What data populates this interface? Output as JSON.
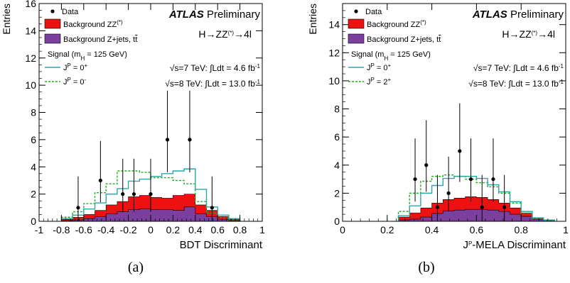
{
  "chart_data": [
    {
      "type": "histogram",
      "panel": "a",
      "caption": "(a)",
      "ylabel": "Entries",
      "xlabel": "BDT Discriminant",
      "xlim": [
        -1,
        1
      ],
      "ylim": [
        0,
        16
      ],
      "xticks": [
        -1,
        -0.8,
        -0.6,
        -0.4,
        -0.2,
        0,
        0.2,
        0.4,
        0.6,
        0.8,
        1
      ],
      "xtick_labels": [
        "-1",
        "-0.8",
        "-0.6",
        "-0.4",
        "-0.2",
        "0",
        "0.2",
        "0.4",
        "0.6",
        "0.8",
        "1"
      ],
      "yticks": [
        0,
        2,
        4,
        6,
        8,
        10,
        12,
        14,
        16
      ],
      "ytick_labels": [
        "0",
        "2",
        "4",
        "6",
        "8",
        "10",
        "12",
        "14",
        "16"
      ],
      "bin_edges": [
        -0.8,
        -0.7,
        -0.6,
        -0.5,
        -0.4,
        -0.3,
        -0.2,
        -0.1,
        0,
        0.1,
        0.2,
        0.3,
        0.4,
        0.5,
        0.6,
        0.7,
        0.8
      ],
      "background_zjets": [
        0.05,
        0.1,
        0.2,
        0.35,
        0.55,
        0.7,
        0.85,
        0.9,
        0.85,
        0.85,
        0.8,
        1.05,
        0.55,
        0.35,
        0.15,
        0.05
      ],
      "background_zz_total": [
        0.15,
        0.3,
        0.5,
        0.8,
        1.2,
        1.45,
        1.8,
        1.9,
        1.75,
        1.7,
        1.9,
        2.0,
        1.2,
        0.8,
        0.35,
        0.15
      ],
      "signal_0plus_total": [
        0.2,
        0.45,
        0.9,
        1.35,
        2.0,
        2.4,
        2.95,
        3.1,
        3.3,
        3.5,
        3.7,
        3.85,
        2.35,
        1.05,
        0.45,
        0.2
      ],
      "signal_alt_total": [
        0.3,
        0.7,
        1.3,
        2.1,
        2.75,
        3.7,
        3.7,
        3.6,
        3.2,
        3.2,
        3.0,
        2.75,
        1.45,
        0.6,
        0.25,
        0.1
      ],
      "data": [
        {
          "x": -0.65,
          "y": 1,
          "err": [
            1,
            2.3
          ]
        },
        {
          "x": -0.45,
          "y": 3,
          "err": [
            1.6,
            2.9
          ]
        },
        {
          "x": -0.25,
          "y": 2,
          "err": [
            1.3,
            2.6
          ]
        },
        {
          "x": -0.15,
          "y": 2,
          "err": [
            1.3,
            2.6
          ]
        },
        {
          "x": 0.0,
          "y": 2,
          "err": [
            1.3,
            2.6
          ]
        },
        {
          "x": 0.15,
          "y": 6,
          "err": [
            2.4,
            3.6
          ]
        },
        {
          "x": 0.35,
          "y": 6,
          "err": [
            2.4,
            3.6
          ]
        },
        {
          "x": 0.55,
          "y": 1,
          "err": [
            1,
            2.3
          ]
        }
      ],
      "legend": {
        "data": "Data",
        "bkg_zz": "Background ZZ",
        "bkg_zz_sup": "(*)",
        "bkg_zjets": "Background Z+jets, t",
        "bkg_zjets_tail": "t",
        "signal_head_a": "Signal (m",
        "signal_head_sub": "H",
        "signal_head_b": " = 125 GeV)",
        "sig1": "J",
        "sig1_sup": "P",
        "sig1_tail": " = 0",
        "sig1_tail_sup": "+",
        "sig2": "J",
        "sig2_sup": "P",
        "sig2_tail": " = 0",
        "sig2_tail_sup": "-"
      },
      "atlas": "ATLAS",
      "preliminary": "Preliminary",
      "process": "H→ZZ",
      "process_sup": "(*)",
      "process_tail": "→4l",
      "lumi7_a": "√s=7 TeV:",
      "lumi7_b": "∫Ldt = 4.6 fb",
      "lumi7_sup": "-1",
      "lumi8_a": "√s=8 TeV:",
      "lumi8_b": "∫Ldt = 13.0 fb",
      "lumi8_sup": "-1",
      "colors": {
        "zz": "#ee1111",
        "zjets": "#7b3f9e",
        "sig0": "#2aa8a8",
        "sigalt": "#22aa22"
      }
    },
    {
      "type": "histogram",
      "panel": "b",
      "caption": "(b)",
      "ylabel": "Entries",
      "xlabel_a": "J",
      "xlabel_sup": "P",
      "xlabel_b": "-MELA Discriminant",
      "xlim": [
        0,
        1
      ],
      "ylim": [
        0,
        15.5
      ],
      "xticks": [
        0,
        0.2,
        0.4,
        0.6,
        0.8,
        1
      ],
      "xtick_labels": [
        "0",
        "0.2",
        "0.4",
        "0.6",
        "0.8",
        "1"
      ],
      "yticks": [
        0,
        2,
        4,
        6,
        8,
        10,
        12,
        14
      ],
      "ytick_labels": [
        "0",
        "2",
        "4",
        "6",
        "8",
        "10",
        "12",
        "14"
      ],
      "bin_edges": [
        0.25,
        0.3,
        0.35,
        0.4,
        0.45,
        0.5,
        0.55,
        0.6,
        0.65,
        0.7,
        0.75,
        0.8,
        0.85,
        0.9,
        0.95
      ],
      "background_zjets": [
        0.1,
        0.15,
        0.3,
        0.55,
        0.75,
        0.8,
        0.85,
        0.85,
        0.8,
        0.7,
        0.5,
        0.35,
        0.15,
        0.05
      ],
      "background_zz_total": [
        0.3,
        0.6,
        0.95,
        1.3,
        1.55,
        1.65,
        1.75,
        1.7,
        1.55,
        1.3,
        0.95,
        0.6,
        0.25,
        0.1
      ],
      "signal_0plus_total": [
        0.4,
        1.1,
        2.0,
        2.55,
        3.05,
        3.2,
        3.2,
        3.05,
        2.6,
        2.1,
        1.4,
        0.7,
        0.25,
        0.1
      ],
      "signal_alt_total": [
        0.7,
        2.0,
        2.85,
        3.2,
        3.3,
        3.2,
        3.0,
        2.75,
        2.45,
        2.0,
        1.3,
        0.55,
        0.2,
        0.05
      ],
      "data": [
        {
          "x": 0.325,
          "y": 3,
          "err": [
            1.6,
            2.9
          ]
        },
        {
          "x": 0.375,
          "y": 4,
          "err": [
            1.9,
            3.2
          ]
        },
        {
          "x": 0.425,
          "y": 1,
          "err": [
            1,
            2.3
          ]
        },
        {
          "x": 0.475,
          "y": 2,
          "err": [
            1.3,
            2.6
          ]
        },
        {
          "x": 0.525,
          "y": 5,
          "err": [
            2.2,
            3.4
          ]
        },
        {
          "x": 0.575,
          "y": 3,
          "err": [
            1.6,
            2.9
          ]
        },
        {
          "x": 0.625,
          "y": 1,
          "err": [
            1,
            2.3
          ]
        },
        {
          "x": 0.675,
          "y": 3,
          "err": [
            1.6,
            2.9
          ]
        },
        {
          "x": 0.725,
          "y": 1,
          "err": [
            1,
            2.3
          ]
        }
      ],
      "legend": {
        "data": "Data",
        "bkg_zz": "Background ZZ",
        "bkg_zz_sup": "(*)",
        "bkg_zjets": "Background Z+jets, t",
        "bkg_zjets_tail": "t",
        "signal_head_a": "Signal (m",
        "signal_head_sub": "H",
        "signal_head_b": " = 125 GeV)",
        "sig1": "J",
        "sig1_sup": "P",
        "sig1_tail": " = 0",
        "sig1_tail_sup": "+",
        "sig2": "J",
        "sig2_sup": "P",
        "sig2_tail": " = 2",
        "sig2_tail_sup": "+"
      },
      "atlas": "ATLAS",
      "preliminary": "Preliminary",
      "process": "H→ZZ",
      "process_sup": "(*)",
      "process_tail": "→4l",
      "lumi7_a": "√s=7 TeV:",
      "lumi7_b": "∫Ldt = 4.6 fb",
      "lumi7_sup": "-1",
      "lumi8_a": "√s=8 TeV:",
      "lumi8_b": "∫Ldt = 13.0 fb",
      "lumi8_sup": "-1",
      "colors": {
        "zz": "#ee1111",
        "zjets": "#7b3f9e",
        "sig0": "#2aa8a8",
        "sigalt": "#22aa22"
      }
    }
  ]
}
